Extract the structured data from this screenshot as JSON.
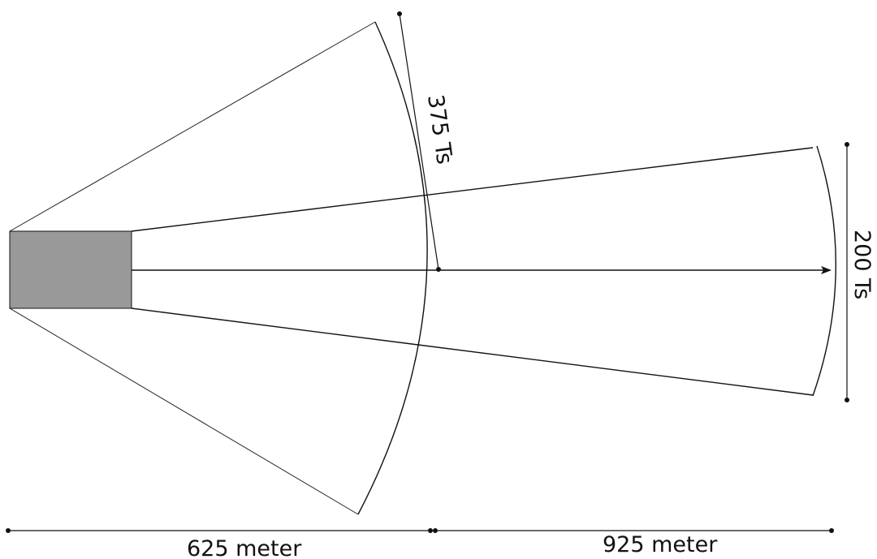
{
  "labels": {
    "wide_arc": "375 Ts",
    "narrow_arc": "200 Ts",
    "near_distance": "625 meter",
    "far_distance": "925 meter"
  },
  "colors": {
    "source_block": "#999999",
    "lines": "#111111"
  }
}
